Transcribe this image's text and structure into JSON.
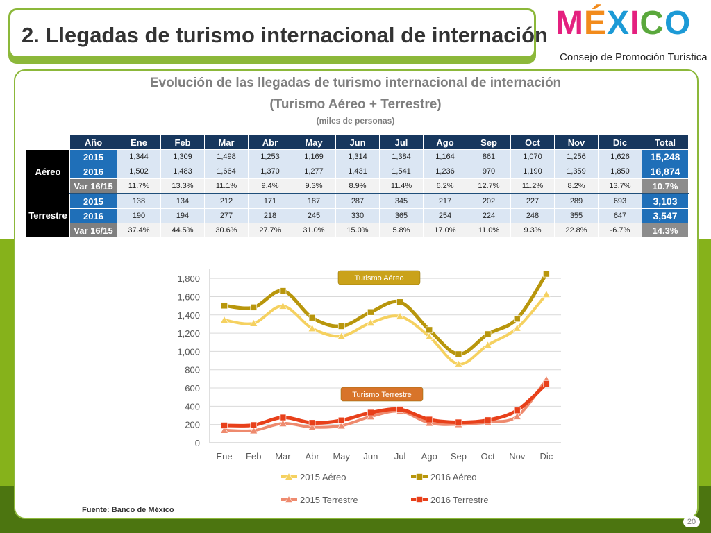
{
  "slide_title": "2. Llegadas de turismo internacional de internación",
  "logo": {
    "word": "MÉXICO",
    "subtitle": "Consejo de Promoción Turística"
  },
  "heading": {
    "line1": "Evolución de las llegadas de turismo internacional de internación",
    "line2": "(Turismo Aéreo + Terrestre)",
    "units": "(miles de personas)"
  },
  "table": {
    "headers": [
      "Año",
      "Ene",
      "Feb",
      "Mar",
      "Abr",
      "May",
      "Jun",
      "Jul",
      "Ago",
      "Sep",
      "Oct",
      "Nov",
      "Dic",
      "Total"
    ],
    "groups": [
      {
        "name": "Aéreo",
        "rows": [
          {
            "label": "2015",
            "values": [
              "1,344",
              "1,309",
              "1,498",
              "1,253",
              "1,169",
              "1,314",
              "1,384",
              "1,164",
              "861",
              "1,070",
              "1,256",
              "1,626"
            ],
            "total": "15,248"
          },
          {
            "label": "2016",
            "values": [
              "1,502",
              "1,483",
              "1,664",
              "1,370",
              "1,277",
              "1,431",
              "1,541",
              "1,236",
              "970",
              "1,190",
              "1,359",
              "1,850"
            ],
            "total": "16,874"
          },
          {
            "label": "Var 16/15",
            "values": [
              "11.7%",
              "13.3%",
              "11.1%",
              "9.4%",
              "9.3%",
              "8.9%",
              "11.4%",
              "6.2%",
              "12.7%",
              "11.2%",
              "8.2%",
              "13.7%"
            ],
            "total": "10.7%"
          }
        ]
      },
      {
        "name": "Terrestre",
        "rows": [
          {
            "label": "2015",
            "values": [
              "138",
              "134",
              "212",
              "171",
              "187",
              "287",
              "345",
              "217",
              "202",
              "227",
              "289",
              "693"
            ],
            "total": "3,103"
          },
          {
            "label": "2016",
            "values": [
              "190",
              "194",
              "277",
              "218",
              "245",
              "330",
              "365",
              "254",
              "224",
              "248",
              "355",
              "647"
            ],
            "total": "3,547"
          },
          {
            "label": "Var 16/15",
            "values": [
              "37.4%",
              "44.5%",
              "30.6%",
              "27.7%",
              "31.0%",
              "15.0%",
              "5.8%",
              "17.0%",
              "11.0%",
              "9.3%",
              "22.8%",
              "-6.7%"
            ],
            "total": "14.3%"
          }
        ]
      }
    ]
  },
  "chart_data": {
    "type": "line",
    "title": "",
    "xlabel": "",
    "ylabel": "",
    "categories": [
      "Ene",
      "Feb",
      "Mar",
      "Abr",
      "May",
      "Jun",
      "Jul",
      "Ago",
      "Sep",
      "Oct",
      "Nov",
      "Dic"
    ],
    "ylim": [
      0,
      1900
    ],
    "yticks": [
      0,
      200,
      400,
      600,
      800,
      1000,
      1200,
      1400,
      1600,
      1800
    ],
    "ytick_labels": [
      "0",
      "200",
      "400",
      "600",
      "800",
      "1,000",
      "1,200",
      "1,400",
      "1,600",
      "1,800"
    ],
    "grid": true,
    "legend": "bottom",
    "annotations": [
      "Turismo Aéreo",
      "Turismo Terrestre"
    ],
    "series": [
      {
        "name": "2015 Aéreo",
        "color": "#f5d160",
        "marker": "triangle",
        "values": [
          1344,
          1309,
          1498,
          1253,
          1169,
          1314,
          1384,
          1164,
          861,
          1070,
          1256,
          1626
        ]
      },
      {
        "name": "2016 Aéreo",
        "color": "#b8960c",
        "marker": "square",
        "values": [
          1502,
          1483,
          1664,
          1370,
          1277,
          1431,
          1541,
          1236,
          970,
          1190,
          1359,
          1850
        ]
      },
      {
        "name": "2015 Terrestre",
        "color": "#ee8a6e",
        "marker": "triangle",
        "values": [
          138,
          134,
          212,
          171,
          187,
          287,
          345,
          217,
          202,
          227,
          289,
          693
        ]
      },
      {
        "name": "2016 Terrestre",
        "color": "#e8401a",
        "marker": "square",
        "values": [
          190,
          194,
          277,
          218,
          245,
          330,
          365,
          254,
          224,
          248,
          355,
          647
        ]
      }
    ]
  },
  "source": "Fuente: Banco de México",
  "page_number": "20"
}
